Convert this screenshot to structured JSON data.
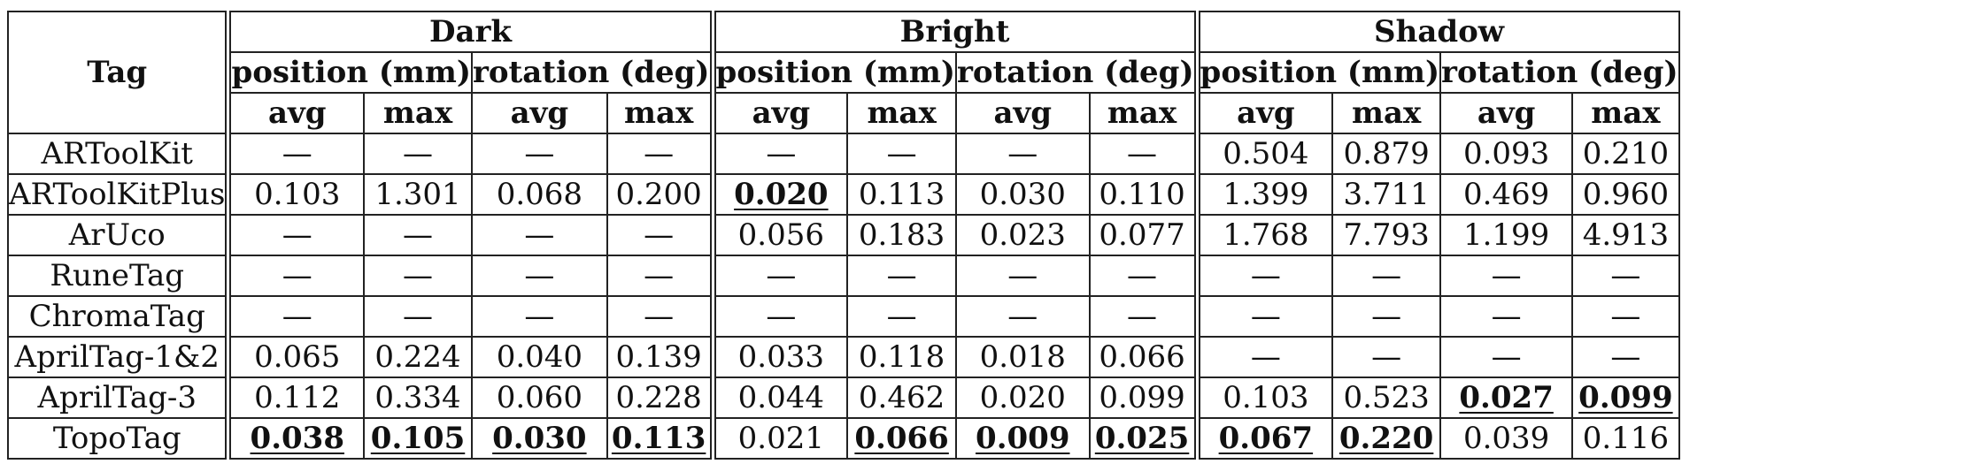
{
  "table": {
    "tag_header": "Tag",
    "groups": [
      "Dark",
      "Bright",
      "Shadow"
    ],
    "subgroups": [
      "position (mm)",
      "rotation (deg)"
    ],
    "stats": [
      "avg",
      "max"
    ],
    "rows": [
      {
        "label": "ARToolKit",
        "cells": [
          "—",
          "—",
          "—",
          "—",
          "—",
          "—",
          "—",
          "—",
          "0.504",
          "0.879",
          "0.093",
          "0.210"
        ]
      },
      {
        "label": "ARToolKitPlus",
        "cells": [
          "0.103",
          "1.301",
          "0.068",
          "0.200",
          "0.020",
          "0.113",
          "0.030",
          "0.110",
          "1.399",
          "3.711",
          "0.469",
          "0.960"
        ]
      },
      {
        "label": "ArUco",
        "cells": [
          "—",
          "—",
          "—",
          "—",
          "0.056",
          "0.183",
          "0.023",
          "0.077",
          "1.768",
          "7.793",
          "1.199",
          "4.913"
        ]
      },
      {
        "label": "RuneTag",
        "cells": [
          "—",
          "—",
          "—",
          "—",
          "—",
          "—",
          "—",
          "—",
          "—",
          "—",
          "—",
          "—"
        ]
      },
      {
        "label": "ChromaTag",
        "cells": [
          "—",
          "—",
          "—",
          "—",
          "—",
          "—",
          "—",
          "—",
          "—",
          "—",
          "—",
          "—"
        ]
      },
      {
        "label": "AprilTag-1&2",
        "cells": [
          "0.065",
          "0.224",
          "0.040",
          "0.139",
          "0.033",
          "0.118",
          "0.018",
          "0.066",
          "—",
          "—",
          "—",
          "—"
        ]
      },
      {
        "label": "AprilTag-3",
        "cells": [
          "0.112",
          "0.334",
          "0.060",
          "0.228",
          "0.044",
          "0.462",
          "0.020",
          "0.099",
          "0.103",
          "0.523",
          "0.027",
          "0.099"
        ]
      },
      {
        "label": "TopoTag",
        "cells": [
          "0.038",
          "0.105",
          "0.030",
          "0.113",
          "0.021",
          "0.066",
          "0.009",
          "0.025",
          "0.067",
          "0.220",
          "0.039",
          "0.116"
        ]
      }
    ],
    "best": [
      [
        1,
        4
      ],
      [
        6,
        10
      ],
      [
        6,
        11
      ],
      [
        7,
        0
      ],
      [
        7,
        1
      ],
      [
        7,
        2
      ],
      [
        7,
        3
      ],
      [
        7,
        5
      ],
      [
        7,
        6
      ],
      [
        7,
        7
      ],
      [
        7,
        8
      ],
      [
        7,
        9
      ]
    ]
  }
}
